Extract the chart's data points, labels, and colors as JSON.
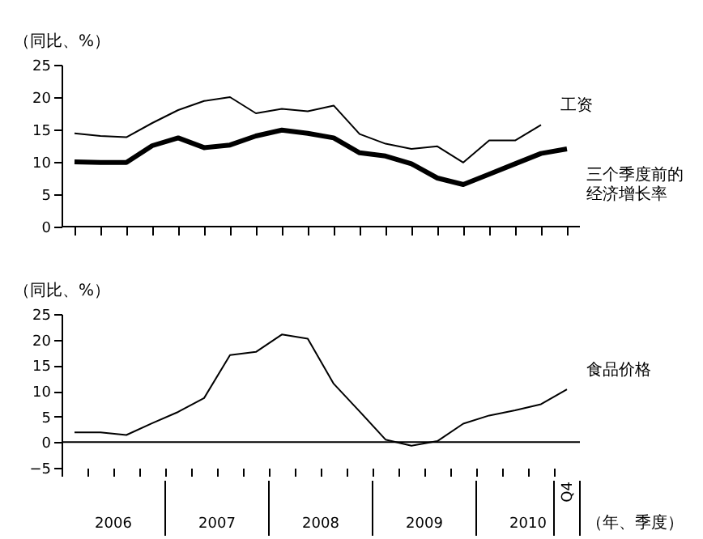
{
  "chart_data": [
    {
      "type": "line",
      "ylabel": "（同比、%）",
      "categories": [
        null,
        null,
        null,
        null,
        null,
        null,
        null,
        null,
        null,
        null,
        null,
        null,
        null,
        null,
        null,
        null,
        null,
        null,
        null,
        null
      ],
      "ylim": [
        0,
        25
      ],
      "yticks": [
        0,
        5,
        10,
        15,
        20,
        25
      ],
      "tick_labels": "y",
      "grid": false,
      "legend": false,
      "marker": "none",
      "line_style": "solid",
      "series": [
        {
          "name": "工资",
          "color": "#000000",
          "values": [
            14.4,
            14,
            13.8,
            16,
            18,
            19.4,
            20,
            17.5,
            18.2,
            17.8,
            18.7,
            14.3,
            12.8,
            12,
            12.4,
            9.9,
            13.3,
            13.3,
            15.7,
            null
          ]
        },
        {
          "name": "三个季度前的经济增长率",
          "color": "#000000",
          "values": [
            10,
            9.9,
            9.9,
            12.5,
            13.7,
            12.2,
            12.6,
            14,
            14.9,
            14.4,
            13.7,
            11.4,
            10.9,
            9.7,
            7.5,
            6.5,
            8.1,
            9.7,
            11.3,
            12
          ]
        }
      ]
    },
    {
      "type": "line",
      "ylabel": "（同比、%）",
      "xlabel": "（年、季度）",
      "categories": [
        null,
        null,
        null,
        null,
        null,
        null,
        null,
        null,
        null,
        null,
        null,
        null,
        null,
        null,
        null,
        null,
        null,
        null,
        null,
        "Q4"
      ],
      "ylim": [
        -5,
        25
      ],
      "yticks": [
        -5,
        0,
        5,
        10,
        15,
        20,
        25
      ],
      "grid": false,
      "legend": false,
      "marker": "none",
      "line_style": "solid",
      "ref_lines": [
        {
          "axis": "y",
          "value": 0,
          "color": "#000000"
        }
      ],
      "annotations": [
        "2006",
        "2007",
        "2008",
        "2009",
        "2010"
      ],
      "series": [
        {
          "name": "食品价格",
          "color": "#000000",
          "values": [
            1.9,
            1.9,
            1.4,
            3.7,
            5.9,
            8.6,
            17,
            17.6,
            21,
            20.2,
            11.4,
            6,
            0.5,
            -0.7,
            0.2,
            3.6,
            5.2,
            6.2,
            7.4,
            10.3
          ]
        }
      ]
    }
  ]
}
